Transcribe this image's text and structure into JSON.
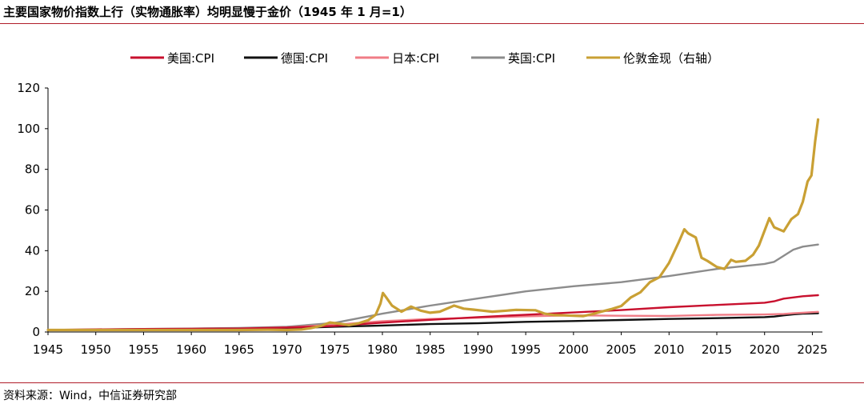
{
  "page": {
    "title": "主要国家物价指数上行（实物通胀率）均明显慢于金价（1945 年 1 月=1）",
    "source": "资料来源：Wind，中信证券研究部"
  },
  "chart_data": {
    "type": "line",
    "title": "主要国家物价指数上行（实物通胀率）均明显慢于金价（1945 年 1 月=1）",
    "xlabel": "",
    "ylabel": "",
    "xlim": [
      1945,
      2025.8
    ],
    "ylim": [
      0,
      120
    ],
    "xticks": [
      1945,
      1950,
      1955,
      1960,
      1965,
      1970,
      1975,
      1980,
      1985,
      1990,
      1995,
      2000,
      2005,
      2010,
      2015,
      2020,
      2025
    ],
    "yticks": [
      0,
      20,
      40,
      60,
      80,
      100,
      120
    ],
    "grid": false,
    "legend_position": "top",
    "series": [
      {
        "name": "美国:CPI",
        "color": "#c8102e",
        "x": [
          1945,
          1950,
          1955,
          1960,
          1965,
          1970,
          1975,
          1980,
          1985,
          1990,
          1995,
          2000,
          2005,
          2010,
          2015,
          2020,
          2021,
          2022,
          2023,
          2024,
          2025.6
        ],
        "y": [
          1.0,
          1.3,
          1.5,
          1.6,
          1.7,
          2.2,
          3.0,
          4.6,
          6.0,
          7.3,
          8.5,
          9.6,
          10.8,
          12.2,
          13.3,
          14.4,
          15.1,
          16.4,
          17.0,
          17.6,
          18.1
        ]
      },
      {
        "name": "德国:CPI",
        "color": "#111111",
        "x": [
          1945,
          1950,
          1955,
          1960,
          1965,
          1970,
          1975,
          1980,
          1985,
          1990,
          1995,
          2000,
          2005,
          2010,
          2015,
          2020,
          2021,
          2022,
          2023,
          2024,
          2025.6
        ],
        "y": [
          1.0,
          1.1,
          1.2,
          1.3,
          1.6,
          1.9,
          2.6,
          3.2,
          3.9,
          4.3,
          5.0,
          5.4,
          5.9,
          6.4,
          6.8,
          7.3,
          7.6,
          8.2,
          8.7,
          9.0,
          9.2
        ]
      },
      {
        "name": "日本:CPI",
        "color": "#f07c86",
        "x": [
          1945,
          1950,
          1955,
          1960,
          1965,
          1970,
          1975,
          1980,
          1985,
          1990,
          1995,
          2000,
          2005,
          2010,
          2015,
          2020,
          2022,
          2023,
          2024,
          2025.6
        ],
        "y": [
          1.0,
          1.1,
          1.2,
          1.3,
          1.7,
          2.3,
          3.6,
          5.3,
          6.4,
          7.0,
          7.7,
          8.2,
          8.0,
          7.9,
          8.4,
          8.6,
          8.9,
          9.2,
          9.5,
          9.9
        ]
      },
      {
        "name": "英国:CPI",
        "color": "#8c8c8c",
        "x": [
          1945,
          1950,
          1955,
          1960,
          1965,
          1970,
          1975,
          1980,
          1985,
          1990,
          1995,
          2000,
          2005,
          2010,
          2015,
          2020,
          2021,
          2022,
          2023,
          2024,
          2025.6
        ],
        "y": [
          1.0,
          1.2,
          1.5,
          1.7,
          2.0,
          2.6,
          4.5,
          9.0,
          13.0,
          16.5,
          20.0,
          22.5,
          24.5,
          27.5,
          31.0,
          33.5,
          34.5,
          37.5,
          40.5,
          42.0,
          43.0
        ]
      },
      {
        "name": "伦敦金现（右轴）",
        "color": "#c9a034",
        "x": [
          1945,
          1965,
          1968,
          1970,
          1971.5,
          1972.5,
          1973.5,
          1974.5,
          1975.5,
          1976.5,
          1977.5,
          1978.5,
          1979.3,
          1979.8,
          1980.05,
          1980.4,
          1981,
          1982,
          1983,
          1984,
          1985,
          1986,
          1987.5,
          1988.5,
          1989.5,
          1990.5,
          1991.5,
          1993,
          1994,
          1996,
          1997,
          1998,
          1999,
          2000,
          2001,
          2002,
          2003,
          2004,
          2005,
          2006,
          2007,
          2008,
          2009,
          2010,
          2011,
          2011.6,
          2012,
          2012.8,
          2013.4,
          2014,
          2015,
          2015.8,
          2016.5,
          2017,
          2018,
          2018.8,
          2019.4,
          2020.5,
          2021,
          2022,
          2022.8,
          2023.5,
          2024,
          2024.5,
          2024.9,
          2025.3,
          2025.6
        ],
        "y": [
          1.0,
          1.0,
          1.1,
          1.0,
          1.2,
          1.9,
          2.9,
          4.7,
          4.1,
          3.4,
          4.3,
          5.8,
          8.5,
          14.0,
          19.2,
          17.0,
          13.0,
          10.0,
          12.5,
          10.5,
          9.5,
          10.0,
          13.0,
          11.5,
          11.0,
          10.5,
          10.0,
          10.5,
          10.9,
          10.7,
          9.0,
          8.3,
          8.2,
          8.0,
          7.8,
          8.8,
          10.1,
          11.3,
          12.8,
          17.0,
          19.5,
          24.5,
          27.0,
          34.0,
          44.0,
          50.5,
          48.5,
          46.5,
          36.5,
          35.0,
          32.0,
          31.0,
          35.5,
          34.5,
          35.0,
          38.0,
          42.5,
          56.0,
          51.5,
          49.5,
          55.5,
          58.0,
          64.0,
          74.0,
          77.0,
          94.0,
          104.5
        ]
      }
    ]
  }
}
